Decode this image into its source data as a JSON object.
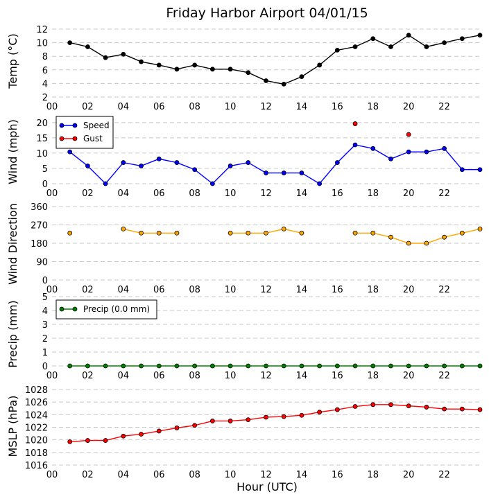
{
  "title": "Friday Harbor Airport 04/01/15",
  "xlabel": "Hour (UTC)",
  "x_ticks": [
    "00",
    "02",
    "04",
    "06",
    "08",
    "10",
    "12",
    "14",
    "16",
    "18",
    "20",
    "22"
  ],
  "chart_data": [
    {
      "type": "line",
      "id": "temp",
      "ylabel": "Temp (°C)",
      "ylim": [
        2,
        12
      ],
      "yticks": [
        2,
        4,
        6,
        8,
        10,
        12
      ],
      "x": [
        1,
        2,
        3,
        4,
        5,
        6,
        7,
        8,
        9,
        10,
        11,
        12,
        13,
        14,
        15,
        16,
        17,
        18,
        19,
        20,
        21,
        22,
        23,
        24
      ],
      "series": [
        {
          "name": "Temp",
          "color": "#000000",
          "values": [
            10.0,
            9.4,
            7.8,
            8.3,
            7.2,
            6.7,
            6.1,
            6.7,
            6.1,
            6.1,
            5.6,
            4.4,
            3.9,
            5.0,
            6.7,
            8.9,
            9.4,
            10.6,
            9.4,
            11.1,
            9.4,
            10.0,
            10.6,
            11.1
          ]
        }
      ]
    },
    {
      "type": "line",
      "id": "wind",
      "ylabel": "Wind (mph)",
      "ylim": [
        0,
        22
      ],
      "yticks": [
        0,
        5,
        10,
        15,
        20
      ],
      "legend": "top-left",
      "x": [
        1,
        2,
        3,
        4,
        5,
        6,
        7,
        8,
        9,
        10,
        11,
        12,
        13,
        14,
        15,
        16,
        17,
        18,
        19,
        20,
        21,
        22,
        23,
        24
      ],
      "series": [
        {
          "name": "Speed",
          "color": "#0000ff",
          "values": [
            10.4,
            5.8,
            0,
            6.9,
            5.8,
            8.1,
            6.9,
            4.6,
            0,
            5.8,
            6.9,
            3.5,
            3.5,
            3.5,
            0,
            6.9,
            12.7,
            11.5,
            8.1,
            10.4,
            10.4,
            11.5,
            4.6,
            4.6
          ]
        },
        {
          "name": "Gust",
          "color": "#ff0000",
          "markers_only": true,
          "values": [
            null,
            null,
            null,
            null,
            null,
            null,
            null,
            null,
            null,
            null,
            null,
            null,
            null,
            null,
            null,
            null,
            19.6,
            null,
            null,
            16.1,
            null,
            null,
            null,
            null
          ]
        }
      ]
    },
    {
      "type": "line",
      "id": "wdir",
      "ylabel": "Wind Direction",
      "ylim": [
        0,
        360
      ],
      "yticks": [
        0,
        90,
        180,
        270,
        360
      ],
      "x": [
        1,
        2,
        3,
        4,
        5,
        6,
        7,
        8,
        9,
        10,
        11,
        12,
        13,
        14,
        15,
        16,
        17,
        18,
        19,
        20,
        21,
        22,
        23,
        24
      ],
      "series": [
        {
          "name": "Direction",
          "color": "#ffa500",
          "values": [
            230,
            null,
            null,
            250,
            230,
            230,
            230,
            null,
            null,
            230,
            230,
            230,
            250,
            230,
            null,
            null,
            230,
            230,
            210,
            180,
            180,
            210,
            230,
            250
          ]
        }
      ]
    },
    {
      "type": "line",
      "id": "precip",
      "ylabel": "Precip (mm)",
      "ylim": [
        0,
        5
      ],
      "yticks": [
        0,
        1,
        2,
        3,
        4,
        5
      ],
      "legend": "top-left",
      "x": [
        1,
        2,
        3,
        4,
        5,
        6,
        7,
        8,
        9,
        10,
        11,
        12,
        13,
        14,
        15,
        16,
        17,
        18,
        19,
        20,
        21,
        22,
        23,
        24
      ],
      "series": [
        {
          "name": "Precip (0.0 mm)",
          "color": "#008000",
          "values": [
            0,
            0,
            0,
            0,
            0,
            0,
            0,
            0,
            0,
            0,
            0,
            0,
            0,
            0,
            0,
            0,
            0,
            0,
            0,
            0,
            0,
            0,
            0,
            0
          ]
        }
      ]
    },
    {
      "type": "line",
      "id": "mslp",
      "ylabel": "MSLP (hPa)",
      "ylim": [
        1016,
        1028
      ],
      "yticks": [
        1016,
        1018,
        1020,
        1022,
        1024,
        1026,
        1028
      ],
      "x": [
        1,
        2,
        3,
        4,
        5,
        6,
        7,
        8,
        9,
        10,
        11,
        12,
        13,
        14,
        15,
        16,
        17,
        18,
        19,
        20,
        21,
        22,
        23,
        24
      ],
      "series": [
        {
          "name": "MSLP",
          "color": "#ff0000",
          "values": [
            1019.7,
            1019.9,
            1019.9,
            1020.6,
            1020.9,
            1021.4,
            1021.9,
            1022.3,
            1023.0,
            1023.0,
            1023.2,
            1023.6,
            1023.7,
            1023.9,
            1024.4,
            1024.8,
            1025.3,
            1025.6,
            1025.6,
            1025.4,
            1025.2,
            1024.9,
            1024.9,
            1024.8
          ]
        }
      ]
    }
  ]
}
